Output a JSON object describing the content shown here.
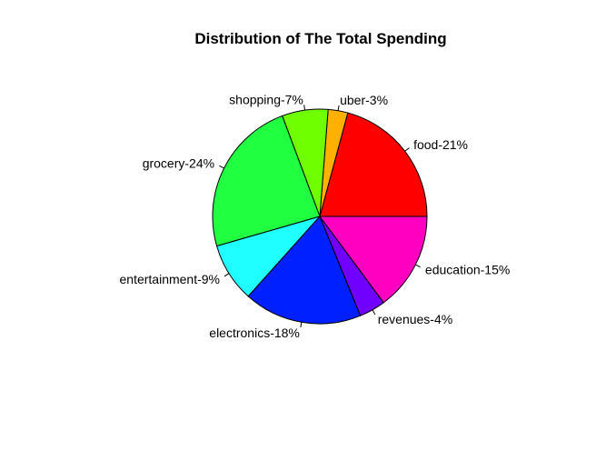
{
  "chart_data": {
    "type": "pie",
    "title": "Distribution of The Total Spending",
    "slices": [
      {
        "label": "food-21%",
        "value": 21,
        "color": "#FF0000"
      },
      {
        "label": "uber-3%",
        "value": 3,
        "color": "#FFB000"
      },
      {
        "label": "shopping-7%",
        "value": 7,
        "color": "#6FFF00"
      },
      {
        "label": "grocery-24%",
        "value": 24,
        "color": "#20FF40"
      },
      {
        "label": "entertainment-9%",
        "value": 9,
        "color": "#20FFFF"
      },
      {
        "label": "electronics-18%",
        "value": 18,
        "color": "#0020FF"
      },
      {
        "label": "revenues-4%",
        "value": 4,
        "color": "#7000FF"
      },
      {
        "label": "education-15%",
        "value": 15,
        "color": "#FF00C0"
      }
    ],
    "start": "3 o'clock",
    "direction": "counterclockwise"
  }
}
